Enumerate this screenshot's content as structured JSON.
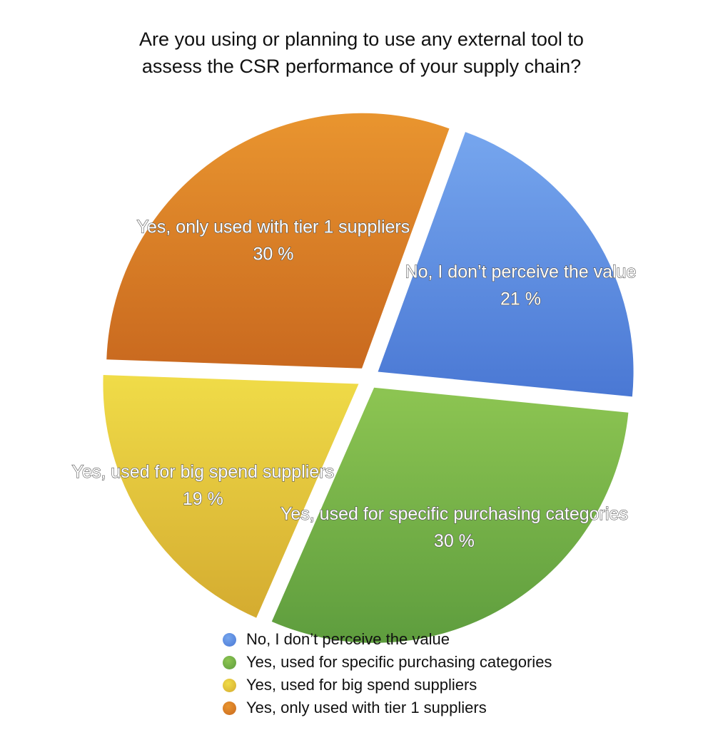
{
  "chart_data": {
    "type": "pie",
    "title_lines": [
      "Are you using or planning to use any external tool to",
      "assess the CSR performance of your supply chain?"
    ],
    "slices": [
      {
        "label": "No, I don’t perceive the value",
        "value": 21,
        "value_label": "21 %",
        "color": "#4a78d4",
        "color_light": "#76a6ee"
      },
      {
        "label": "Yes, used for specific purchasing categories",
        "value": 30,
        "value_label": "30 %",
        "color": "#5e9d3e",
        "color_light": "#8dc552"
      },
      {
        "label": "Yes, used for big spend suppliers",
        "value": 19,
        "value_label": "19 %",
        "color": "#d4ab30",
        "color_light": "#f0dc48"
      },
      {
        "label": "Yes, only used with tier 1 suppliers",
        "value": 30,
        "value_label": "30 %",
        "color": "#c9691f",
        "color_light": "#e9952f"
      }
    ],
    "start_angle_deg": 20,
    "exploded": true,
    "legend_position": "bottom"
  }
}
